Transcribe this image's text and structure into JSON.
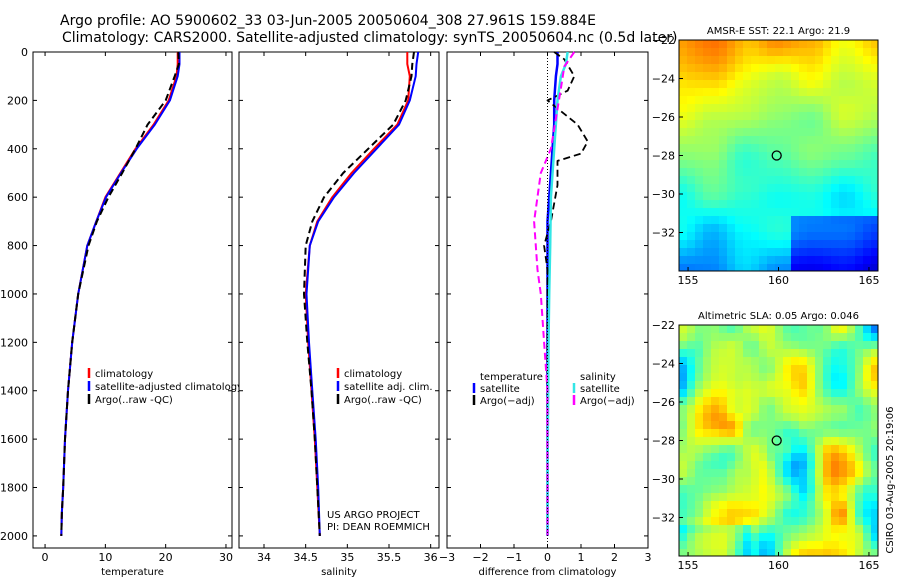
{
  "title": {
    "line1": "Argo profile: AO 5900602_33 03-Jun-2005 20050604_308 27.961S 159.884E",
    "line2": "Climatology: CARS2000. Satellite-adjusted climatology: synTS_20050604.nc (0.5d later)"
  },
  "colors": {
    "climatology": "#ff0000",
    "satellite": "#0000ff",
    "argo": "#000000",
    "sal_satellite": "#33e6e6",
    "sal_argo": "#ff00ff"
  },
  "depth_axis": {
    "ylim": [
      0,
      2050
    ],
    "ticks": [
      "0",
      "200",
      "400",
      "600",
      "800",
      "1000",
      "1200",
      "1400",
      "1600",
      "1800",
      "2000"
    ]
  },
  "chart_data": [
    {
      "id": "temperature",
      "type": "line",
      "xlabel": "temperature",
      "xlim": [
        -2,
        31
      ],
      "xticks": [
        0,
        10,
        20,
        30
      ],
      "xtick_labels": [
        "0",
        "10",
        "20",
        "30"
      ],
      "legend": [
        "climatology",
        "satellite-adjusted climatology",
        "Argo(..raw -QC)"
      ],
      "series": [
        {
          "name": "climatology",
          "color_key": "climatology",
          "dash": "",
          "x": [
            22.0,
            22.0,
            21.8,
            20.5,
            18.0,
            15.0,
            12.5,
            10.0,
            8.5,
            7.0,
            5.5,
            4.5,
            3.8,
            3.3,
            3.0,
            2.8,
            2.7
          ],
          "y": [
            0,
            50,
            100,
            200,
            300,
            400,
            500,
            600,
            700,
            800,
            1000,
            1200,
            1400,
            1600,
            1800,
            1900,
            2000
          ]
        },
        {
          "name": "satellite-adjusted climatology",
          "color_key": "satellite",
          "dash": "",
          "x": [
            22.3,
            22.3,
            22.0,
            20.7,
            18.2,
            15.2,
            12.6,
            10.1,
            8.5,
            7.0,
            5.5,
            4.5,
            3.8,
            3.3,
            3.0,
            2.8,
            2.7
          ],
          "y": [
            0,
            50,
            100,
            200,
            300,
            400,
            500,
            600,
            700,
            800,
            1000,
            1200,
            1400,
            1600,
            1800,
            1900,
            2000
          ]
        },
        {
          "name": "Argo(..raw -QC)",
          "color_key": "argo",
          "dash": "7,4",
          "x": [
            22.1,
            22.2,
            21.5,
            20.0,
            17.0,
            15.0,
            12.8,
            10.5,
            8.6,
            7.2,
            5.5,
            4.5,
            3.8,
            3.3,
            3.0,
            2.8,
            2.7
          ],
          "y": [
            0,
            50,
            100,
            200,
            300,
            400,
            500,
            600,
            700,
            800,
            1000,
            1200,
            1400,
            1600,
            1800,
            1900,
            2000
          ]
        }
      ]
    },
    {
      "id": "salinity",
      "type": "line",
      "xlabel": "salinity",
      "xlim": [
        33.7,
        36.1
      ],
      "xticks": [
        34,
        34.5,
        35,
        35.5,
        36
      ],
      "xtick_labels": [
        "34",
        "34.5",
        "35",
        "35.5",
        "36"
      ],
      "legend": [
        "climatology",
        "satellite adj. clim.",
        "Argo(..raw -QC)"
      ],
      "annotation": [
        "US ARGO PROJECT",
        "PI: DEAN ROEMMICH"
      ],
      "series": [
        {
          "name": "climatology",
          "color_key": "climatology",
          "dash": "",
          "x": [
            35.72,
            35.72,
            35.75,
            35.73,
            35.6,
            35.32,
            35.05,
            34.82,
            34.64,
            34.55,
            34.5,
            34.53,
            34.57,
            34.61,
            34.64,
            34.67
          ],
          "y": [
            0,
            50,
            100,
            200,
            300,
            400,
            500,
            600,
            700,
            800,
            1000,
            1200,
            1400,
            1600,
            1800,
            2000
          ]
        },
        {
          "name": "satellite adj. clim.",
          "color_key": "satellite",
          "dash": "",
          "x": [
            35.85,
            35.83,
            35.82,
            35.75,
            35.62,
            35.35,
            35.08,
            34.84,
            34.65,
            34.55,
            34.51,
            34.54,
            34.58,
            34.62,
            34.65,
            34.67
          ],
          "y": [
            0,
            50,
            100,
            200,
            300,
            400,
            500,
            600,
            700,
            800,
            1000,
            1200,
            1400,
            1600,
            1800,
            2000
          ]
        },
        {
          "name": "Argo(..raw -QC)",
          "color_key": "argo",
          "dash": "7,4",
          "x": [
            35.8,
            35.78,
            35.77,
            35.7,
            35.55,
            35.25,
            34.95,
            34.72,
            34.58,
            34.5,
            34.48,
            34.52,
            34.57,
            34.61,
            34.64,
            34.67
          ],
          "y": [
            0,
            50,
            100,
            200,
            300,
            400,
            500,
            600,
            700,
            800,
            1000,
            1200,
            1400,
            1600,
            1800,
            2000
          ]
        }
      ]
    },
    {
      "id": "difference",
      "type": "line",
      "xlabel": "difference from climatology",
      "xlim": [
        -3,
        3
      ],
      "xticks": [
        -3,
        -2,
        -1,
        0,
        1,
        2,
        3
      ],
      "xtick_labels": [
        "−3",
        "−2",
        "−1",
        "0",
        "1",
        "2",
        "3"
      ],
      "legend_temperature": [
        "temperature",
        "satellite",
        "Argo(−adj)"
      ],
      "legend_salinity": [
        "salinity",
        "satellite",
        "Argo(−adj)"
      ],
      "series": [
        {
          "name": "temperature satellite",
          "color_key": "satellite",
          "dash": "",
          "width": 2.5,
          "x": [
            0.3,
            0.3,
            0.25,
            0.2,
            0.2,
            0.15,
            0.1,
            0.05,
            0.0,
            0.0,
            0.0,
            0.0,
            0.0,
            0.0,
            0.0
          ],
          "y": [
            0,
            50,
            100,
            200,
            300,
            400,
            500,
            600,
            700,
            800,
            1000,
            1200,
            1400,
            1700,
            2000
          ]
        },
        {
          "name": "temperature Argo(-adj)",
          "color_key": "argo",
          "dash": "7,4",
          "width": 1.8,
          "x": [
            0.2,
            0.5,
            0.8,
            0.6,
            0.0,
            0.9,
            1.2,
            1.0,
            0.3,
            0.3,
            0.1,
            -0.1,
            0.0,
            0.0,
            0.0,
            0.0,
            0.0
          ],
          "y": [
            0,
            30,
            100,
            160,
            200,
            300,
            370,
            420,
            450,
            550,
            700,
            800,
            900,
            1000,
            1300,
            1700,
            2000
          ]
        },
        {
          "name": "salinity satellite",
          "color_key": "sal_satellite",
          "dash": "",
          "width": 2.5,
          "x": [
            0.6,
            0.55,
            0.4,
            0.3,
            0.2,
            0.1,
            0.08,
            0.05,
            0.03,
            0.02,
            0.01,
            0.0,
            0.0
          ],
          "y": [
            0,
            50,
            100,
            200,
            400,
            600,
            800,
            1000,
            1200,
            1400,
            1600,
            1800,
            2000
          ]
        },
        {
          "name": "salinity Argo(-adj)",
          "color_key": "sal_argo",
          "dash": "7,4",
          "width": 2,
          "x": [
            0.8,
            0.5,
            0.4,
            0.1,
            -0.2,
            -0.4,
            -0.3,
            -0.2,
            -0.1,
            0.0,
            0.0,
            0.0,
            0.0
          ],
          "y": [
            0,
            60,
            150,
            400,
            500,
            700,
            900,
            1000,
            1200,
            1400,
            1600,
            1800,
            2000
          ]
        }
      ]
    },
    {
      "id": "sst_map",
      "type": "heatmap",
      "title": "AMSR-E SST: 22.1 Argo: 21.9",
      "xlim": [
        154.5,
        165.5
      ],
      "ylim": [
        -34,
        -22
      ],
      "xticks": [
        155,
        160,
        165
      ],
      "yticks": [
        -22,
        -24,
        -26,
        -28,
        -30,
        -32
      ],
      "xtick_labels": [
        "155",
        "160",
        "165"
      ],
      "ytick_labels": [
        "−22",
        "−24",
        "−26",
        "−28",
        "−30",
        "−32"
      ],
      "marker": {
        "lon": 159.9,
        "lat": -28.0
      }
    },
    {
      "id": "sla_map",
      "type": "heatmap",
      "title": "Altimetric SLA: 0.05 Argo: 0.046",
      "xlim": [
        154.5,
        165.5
      ],
      "ylim": [
        -34,
        -22
      ],
      "xticks": [
        155,
        160,
        165
      ],
      "yticks": [
        -22,
        -24,
        -26,
        -28,
        -30,
        -32
      ],
      "xtick_labels": [
        "155",
        "160",
        "165"
      ],
      "ytick_labels": [
        "−22",
        "−24",
        "−26",
        "−28",
        "−30",
        "−32"
      ],
      "marker": {
        "lon": 159.9,
        "lat": -28.0
      }
    }
  ],
  "footer_stamp": "CSIRO 03-Aug-2005 20:19:06"
}
